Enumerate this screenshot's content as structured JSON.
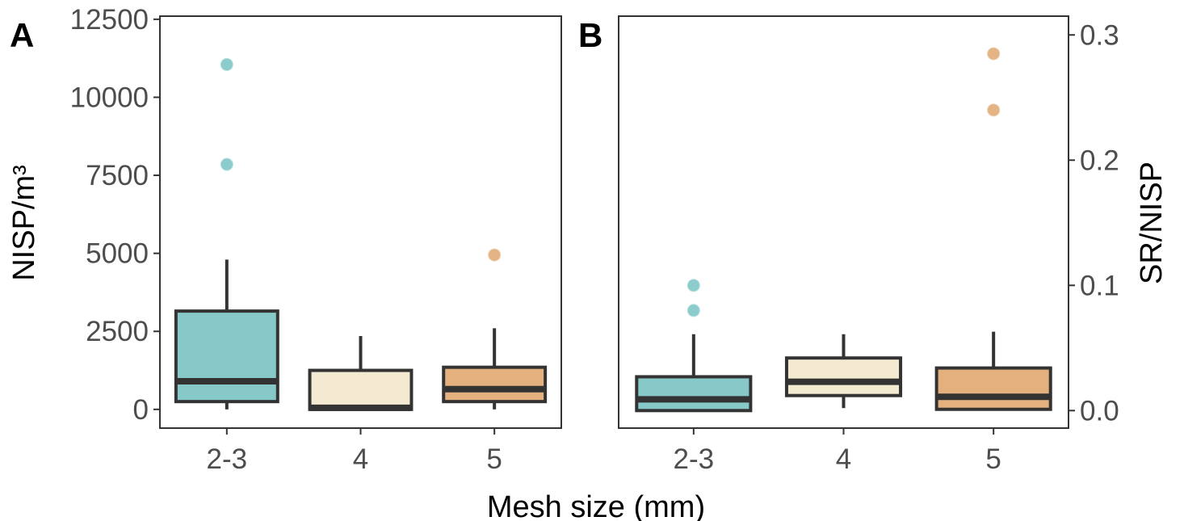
{
  "figure": {
    "shared_xlabel": "Mesh size (mm)"
  },
  "colors": {
    "mesh_2_3": "#87c9c9",
    "mesh_4": "#f3ead1",
    "mesh_5": "#e3b07e",
    "outline": "#333333"
  },
  "chart_data": [
    {
      "type": "box",
      "panel": "A",
      "title": "",
      "xlabel": "Mesh size (mm)",
      "ylabel": "NISP/m³",
      "y_axis_side": "left",
      "grid": false,
      "ylim": [
        -600,
        12600
      ],
      "yticks": [
        0,
        2500,
        5000,
        7500,
        10000,
        12500
      ],
      "ytick_labels": [
        "0",
        "2500",
        "5000",
        "7500",
        "10000",
        "12500"
      ],
      "categories": [
        "2-3",
        "4",
        "5"
      ],
      "color_keys": [
        "mesh_2_3",
        "mesh_4",
        "mesh_5"
      ],
      "boxes": [
        {
          "category": "2-3",
          "whisker_low": 0,
          "q1": 250,
          "median": 900,
          "q3": 3150,
          "whisker_high": 4800,
          "outliers": [
            7850,
            11050
          ]
        },
        {
          "category": "4",
          "whisker_low": 0,
          "q1": 0,
          "median": 50,
          "q3": 1250,
          "whisker_high": 2350,
          "outliers": []
        },
        {
          "category": "5",
          "whisker_low": 0,
          "q1": 250,
          "median": 650,
          "q3": 1350,
          "whisker_high": 2600,
          "outliers": [
            4950
          ]
        }
      ]
    },
    {
      "type": "box",
      "panel": "B",
      "title": "",
      "xlabel": "Mesh size (mm)",
      "ylabel": "SR/NISP",
      "y_axis_side": "right",
      "grid": false,
      "ylim": [
        -0.014,
        0.315
      ],
      "yticks": [
        0.0,
        0.1,
        0.2,
        0.3
      ],
      "ytick_labels": [
        "0.0",
        "0.1",
        "0.2",
        "0.3"
      ],
      "categories": [
        "2-3",
        "4",
        "5"
      ],
      "color_keys": [
        "mesh_2_3",
        "mesh_4",
        "mesh_5"
      ],
      "boxes": [
        {
          "category": "2-3",
          "whisker_low": 0.0,
          "q1": 0.0,
          "median": 0.009,
          "q3": 0.027,
          "whisker_high": 0.061,
          "outliers": [
            0.08,
            0.1
          ]
        },
        {
          "category": "4",
          "whisker_low": 0.002,
          "q1": 0.012,
          "median": 0.023,
          "q3": 0.042,
          "whisker_high": 0.061,
          "outliers": []
        },
        {
          "category": "5",
          "whisker_low": 0.0,
          "q1": 0.001,
          "median": 0.011,
          "q3": 0.034,
          "whisker_high": 0.063,
          "outliers": [
            0.24,
            0.285
          ]
        }
      ]
    }
  ]
}
